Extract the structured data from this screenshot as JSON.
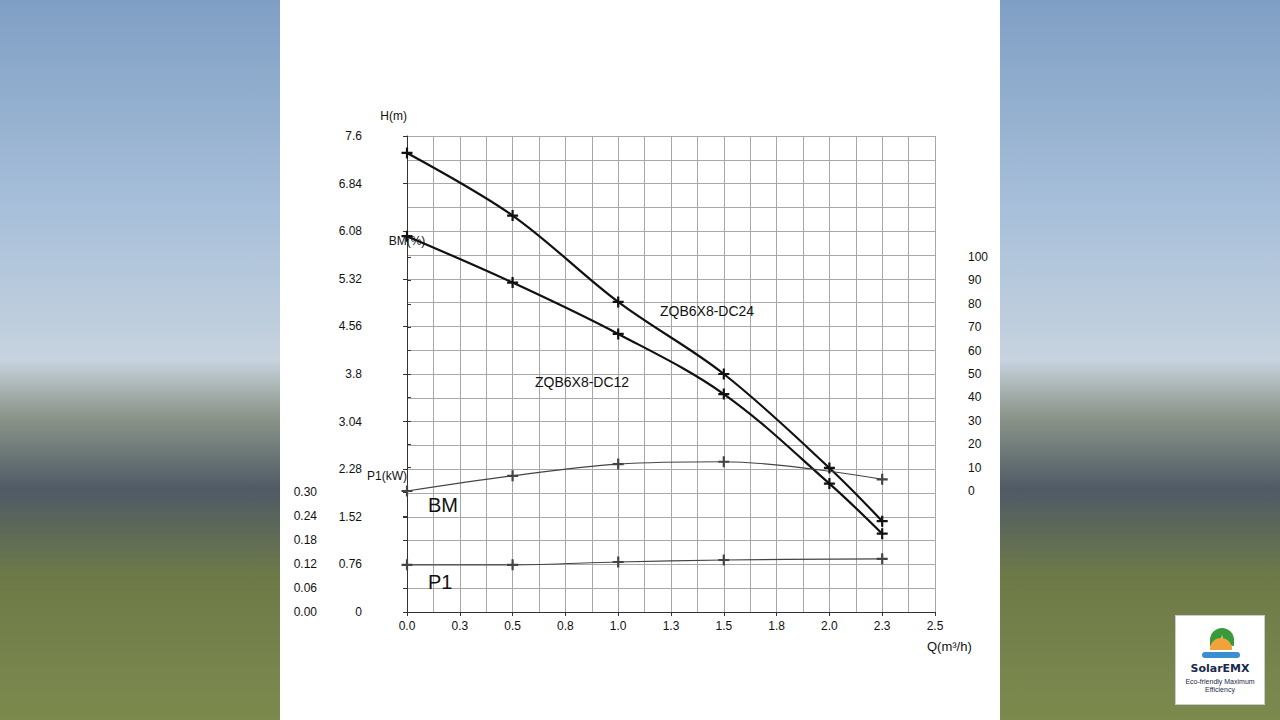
{
  "chart_data": {
    "type": "line",
    "x_label": "Q(m³/h)",
    "y_label": "H(m)",
    "y2_label": "BM(%)",
    "y3_label": "P1(kW)",
    "xlim": [
      0,
      2.5
    ],
    "xticks": [
      {
        "value": 0,
        "label": "0.0"
      },
      {
        "value": 0.25,
        "label": "0.3"
      },
      0.5,
      {
        "value": 0.75,
        "label": "0.8"
      },
      {
        "value": 1,
        "label": "1.0"
      },
      {
        "value": 1.25,
        "label": "1.3"
      },
      1.5,
      {
        "value": 1.75,
        "label": "1.8"
      },
      {
        "value": 2,
        "label": "2.0"
      },
      {
        "value": 2.25,
        "label": "2.3"
      },
      2.5
    ],
    "ylim": [
      0,
      7.6
    ],
    "yticks": [
      0,
      0.76,
      1.52,
      2.28,
      3.04,
      3.8,
      4.56,
      5.32,
      6.08,
      6.84,
      7.6
    ],
    "y2lim": [
      0,
      100
    ],
    "y2ticks": [
      0,
      10,
      20,
      30,
      40,
      50,
      60,
      70,
      80,
      90,
      100
    ],
    "y3lim": [
      0,
      0.3
    ],
    "y3ticks": [
      {
        "value": 0,
        "label": "0.00"
      },
      0.06,
      0.12,
      0.18,
      0.24,
      {
        "value": 0.3,
        "label": "0.30"
      }
    ],
    "grid": true,
    "series": [
      {
        "name": "ZQB6X8-DC24",
        "color": "#111111",
        "marker": "plus",
        "line_style": "solid",
        "x": [
          0,
          0.5,
          1.0,
          1.5,
          2.0,
          2.25
        ],
        "values": [
          7.33,
          6.33,
          4.95,
          3.8,
          2.3,
          1.45
        ]
      },
      {
        "name": "ZQB6X8-DC12",
        "color": "#111111",
        "marker": "plus",
        "line_style": "solid",
        "x": [
          0,
          0.5,
          1.0,
          1.5,
          2.0,
          2.25
        ],
        "values": [
          6.0,
          5.26,
          4.44,
          3.48,
          2.05,
          1.25
        ]
      },
      {
        "name": "BM",
        "color": "#444444",
        "marker": "plus",
        "line_style": "solid",
        "axis": "y2",
        "x": [
          0,
          0.5,
          1.0,
          1.5,
          2.25
        ],
        "values": [
          0,
          6.5,
          11.5,
          12.5,
          5
        ]
      },
      {
        "name": "P1",
        "color": "#444444",
        "marker": "plus",
        "line_style": "solid",
        "axis": "y3",
        "x": [
          0,
          0.5,
          1.0,
          1.5,
          2.25
        ],
        "values": [
          0.118,
          0.118,
          0.125,
          0.13,
          0.133
        ]
      }
    ],
    "annotations": [
      "SolarEMX",
      "Eco-friendly Maximum Efficiency"
    ]
  }
}
